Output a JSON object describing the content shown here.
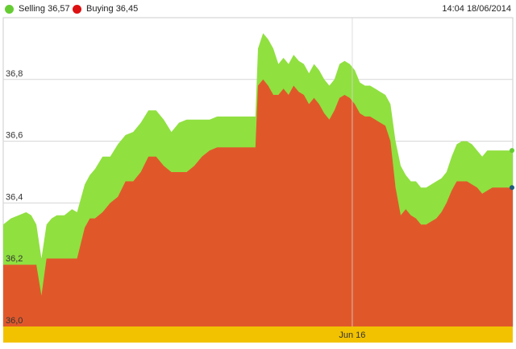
{
  "header": {
    "selling_label": "Selling 36,57",
    "buying_label": "Buying 36,45",
    "timestamp": "14:04 18/06/2014"
  },
  "colors": {
    "selling": "#90e040",
    "buying": "#e0582a",
    "band": "#f2c200",
    "selling_dot": "#66cc33",
    "buying_dot": "#dd1111"
  },
  "chart_data": {
    "type": "area",
    "title": "",
    "xlabel": "",
    "ylabel": "",
    "ylim": [
      36.0,
      37.0
    ],
    "yticks": [
      {
        "value": 36.0,
        "label": "36,0"
      },
      {
        "value": 36.2,
        "label": "36,2"
      },
      {
        "value": 36.4,
        "label": "36,4"
      },
      {
        "value": 36.6,
        "label": "36,6"
      },
      {
        "value": 36.8,
        "label": "36,8"
      }
    ],
    "x_range": [
      0,
      100
    ],
    "xticks": [
      {
        "x": 68.5,
        "label": "Jun 16"
      }
    ],
    "grid": true,
    "legend": "top-left",
    "series": [
      {
        "name": "Selling",
        "x": [
          0,
          1.5,
          3,
          4.5,
          5.5,
          6.5,
          7.5,
          8.5,
          9.5,
          10.5,
          12,
          13.5,
          14.5,
          16,
          17,
          18,
          19.5,
          21,
          22.5,
          24,
          25.5,
          27,
          28.5,
          30,
          31.5,
          33,
          34.5,
          36,
          37.5,
          39,
          40.5,
          42,
          43.5,
          45,
          46.5,
          48,
          49.5,
          50,
          51,
          52,
          53,
          54,
          55,
          56,
          57,
          58,
          59,
          60,
          61,
          62,
          63,
          64,
          65,
          66,
          67,
          68,
          69,
          70,
          71,
          72,
          73,
          74,
          75,
          76,
          77,
          78,
          79,
          80,
          81,
          82,
          83,
          84,
          85,
          86,
          87,
          88,
          89,
          90,
          91,
          92,
          93,
          94,
          95,
          96,
          97,
          98,
          99,
          100
        ],
        "values": [
          36.33,
          36.35,
          36.36,
          36.37,
          36.36,
          36.33,
          36.22,
          36.33,
          36.35,
          36.36,
          36.36,
          36.38,
          36.37,
          36.46,
          36.49,
          36.51,
          36.55,
          36.55,
          36.59,
          36.62,
          36.63,
          36.66,
          36.7,
          36.7,
          36.67,
          36.63,
          36.66,
          36.67,
          36.67,
          36.67,
          36.67,
          36.68,
          36.68,
          36.68,
          36.68,
          36.68,
          36.68,
          36.9,
          36.95,
          36.93,
          36.9,
          36.85,
          36.87,
          36.85,
          36.88,
          36.86,
          36.85,
          36.82,
          36.85,
          36.83,
          36.8,
          36.78,
          36.8,
          36.85,
          36.86,
          36.85,
          36.83,
          36.79,
          36.78,
          36.78,
          36.77,
          36.76,
          36.75,
          36.72,
          36.6,
          36.52,
          36.49,
          36.47,
          36.47,
          36.45,
          36.45,
          36.46,
          36.47,
          36.48,
          36.5,
          36.55,
          36.59,
          36.6,
          36.6,
          36.59,
          36.57,
          36.55,
          36.57,
          36.57,
          36.57,
          36.57,
          36.57,
          36.57
        ]
      },
      {
        "name": "Buying",
        "x": [
          0,
          1.5,
          3,
          4.5,
          5.5,
          6.5,
          7.5,
          8.5,
          9.5,
          10.5,
          12,
          13.5,
          14.5,
          16,
          17,
          18,
          19.5,
          21,
          22.5,
          24,
          25.5,
          27,
          28.5,
          30,
          31.5,
          33,
          34.5,
          36,
          37.5,
          39,
          40.5,
          42,
          43.5,
          45,
          46.5,
          48,
          49.5,
          50,
          51,
          52,
          53,
          54,
          55,
          56,
          57,
          58,
          59,
          60,
          61,
          62,
          63,
          64,
          65,
          66,
          67,
          68,
          69,
          70,
          71,
          72,
          73,
          74,
          75,
          76,
          77,
          78,
          79,
          80,
          81,
          82,
          83,
          84,
          85,
          86,
          87,
          88,
          89,
          90,
          91,
          92,
          93,
          94,
          95,
          96,
          97,
          98,
          99,
          100
        ],
        "values": [
          36.2,
          36.2,
          36.2,
          36.2,
          36.2,
          36.2,
          36.1,
          36.22,
          36.22,
          36.22,
          36.22,
          36.22,
          36.22,
          36.32,
          36.35,
          36.35,
          36.37,
          36.4,
          36.42,
          36.47,
          36.47,
          36.5,
          36.55,
          36.55,
          36.52,
          36.5,
          36.5,
          36.5,
          36.52,
          36.55,
          36.57,
          36.58,
          36.58,
          36.58,
          36.58,
          36.58,
          36.58,
          36.78,
          36.8,
          36.78,
          36.75,
          36.75,
          36.77,
          36.75,
          36.78,
          36.76,
          36.75,
          36.72,
          36.74,
          36.72,
          36.69,
          36.67,
          36.7,
          36.74,
          36.75,
          36.74,
          36.72,
          36.69,
          36.68,
          36.68,
          36.67,
          36.66,
          36.65,
          36.6,
          36.45,
          36.36,
          36.38,
          36.36,
          36.35,
          36.33,
          36.33,
          36.34,
          36.35,
          36.37,
          36.4,
          36.44,
          36.47,
          36.47,
          36.47,
          36.46,
          36.45,
          36.43,
          36.44,
          36.45,
          36.45,
          36.45,
          36.45,
          36.45
        ]
      }
    ]
  }
}
